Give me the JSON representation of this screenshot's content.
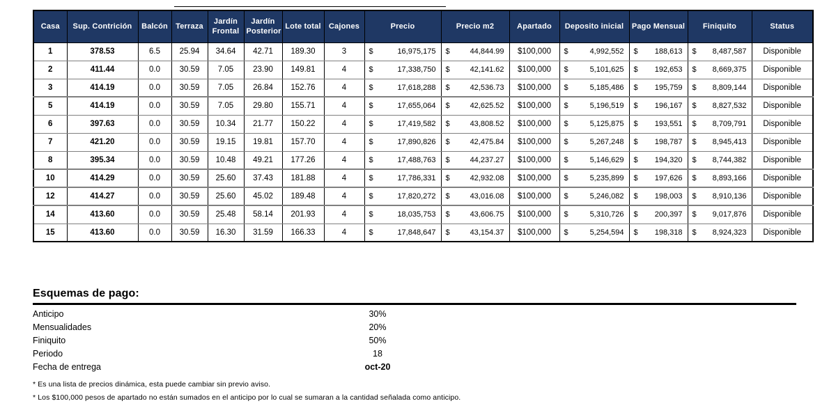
{
  "colors": {
    "header_bg": "#1F3864",
    "header_text": "#FFFFFF"
  },
  "table": {
    "currency_symbol": "$",
    "headers": [
      "Casa",
      "Sup. Contrición",
      "Balcón",
      "Terraza",
      "Jardín Frontal",
      "Jardín Posterior",
      "Lote total",
      "Cajones",
      "Precio",
      "Precio m2",
      "Apartado",
      "Deposito inicial",
      "Pago Mensual",
      "Finiquito",
      "Status"
    ],
    "rows": [
      [
        "1",
        "378.53",
        "6.5",
        "25.94",
        "34.64",
        "42.71",
        "189.30",
        "3",
        "16,975,175",
        "44,844.99",
        "$100,000",
        "4,992,552",
        "188,613",
        "8,487,587",
        "Disponible"
      ],
      [
        "2",
        "411.44",
        "0.0",
        "30.59",
        "7.05",
        "23.90",
        "149.81",
        "4",
        "17,338,750",
        "42,141.62",
        "$100,000",
        "5,101,625",
        "192,653",
        "8,669,375",
        "Disponible"
      ],
      [
        "3",
        "414.19",
        "0.0",
        "30.59",
        "7.05",
        "26.84",
        "152.76",
        "4",
        "17,618,288",
        "42,536.73",
        "$100,000",
        "5,185,486",
        "195,759",
        "8,809,144",
        "Disponible"
      ],
      [
        "5",
        "414.19",
        "0.0",
        "30.59",
        "7.05",
        "29.80",
        "155.71",
        "4",
        "17,655,064",
        "42,625.52",
        "$100,000",
        "5,196,519",
        "196,167",
        "8,827,532",
        "Disponible"
      ],
      [
        "6",
        "397.63",
        "0.0",
        "30.59",
        "10.34",
        "21.77",
        "150.22",
        "4",
        "17,419,582",
        "43,808.52",
        "$100,000",
        "5,125,875",
        "193,551",
        "8,709,791",
        "Disponible"
      ],
      [
        "7",
        "421.20",
        "0.0",
        "30.59",
        "19.15",
        "19.81",
        "157.70",
        "4",
        "17,890,826",
        "42,475.84",
        "$100,000",
        "5,267,248",
        "198,787",
        "8,945,413",
        "Disponible"
      ],
      [
        "8",
        "395.34",
        "0.0",
        "30.59",
        "10.48",
        "49.21",
        "177.26",
        "4",
        "17,488,763",
        "44,237.27",
        "$100,000",
        "5,146,629",
        "194,320",
        "8,744,382",
        "Disponible"
      ],
      [
        "10",
        "414.29",
        "0.0",
        "30.59",
        "25.60",
        "37.43",
        "181.88",
        "4",
        "17,786,331",
        "42,932.08",
        "$100,000",
        "5,235,899",
        "197,626",
        "8,893,166",
        "Disponible"
      ],
      [
        "12",
        "414.27",
        "0.0",
        "30.59",
        "25.60",
        "45.02",
        "189.48",
        "4",
        "17,820,272",
        "43,016.08",
        "$100,000",
        "5,246,082",
        "198,003",
        "8,910,136",
        "Disponible"
      ],
      [
        "14",
        "413.60",
        "0.0",
        "30.59",
        "25.48",
        "58.14",
        "201.93",
        "4",
        "18,035,753",
        "43,606.75",
        "$100,000",
        "5,310,726",
        "200,397",
        "9,017,876",
        "Disponible"
      ],
      [
        "15",
        "413.60",
        "0.0",
        "30.59",
        "16.30",
        "31.59",
        "166.33",
        "4",
        "17,848,647",
        "43,154.37",
        "$100,000",
        "5,254,594",
        "198,318",
        "8,924,323",
        "Disponible"
      ]
    ],
    "thick_top_rows": [
      "5",
      "10",
      "12",
      "14"
    ]
  },
  "payment": {
    "title": "Esquemas de pago:",
    "rows": [
      {
        "label": "Anticipo",
        "value": "30%",
        "bold": false
      },
      {
        "label": "Mensualidades",
        "value": "20%",
        "bold": false
      },
      {
        "label": "Finiquito",
        "value": "50%",
        "bold": false
      },
      {
        "label": "Periodo",
        "value": "18",
        "bold": false
      },
      {
        "label": "Fecha de entrega",
        "value": "oct-20",
        "bold": true
      }
    ],
    "notes": [
      "* Es una lista de precios dinámica, esta puede cambiar sin previo aviso.",
      "* Los $100,000 pesos de apartado no están sumados en el anticipo por lo cual se sumaran a la cantidad señalada como anticipo."
    ]
  }
}
